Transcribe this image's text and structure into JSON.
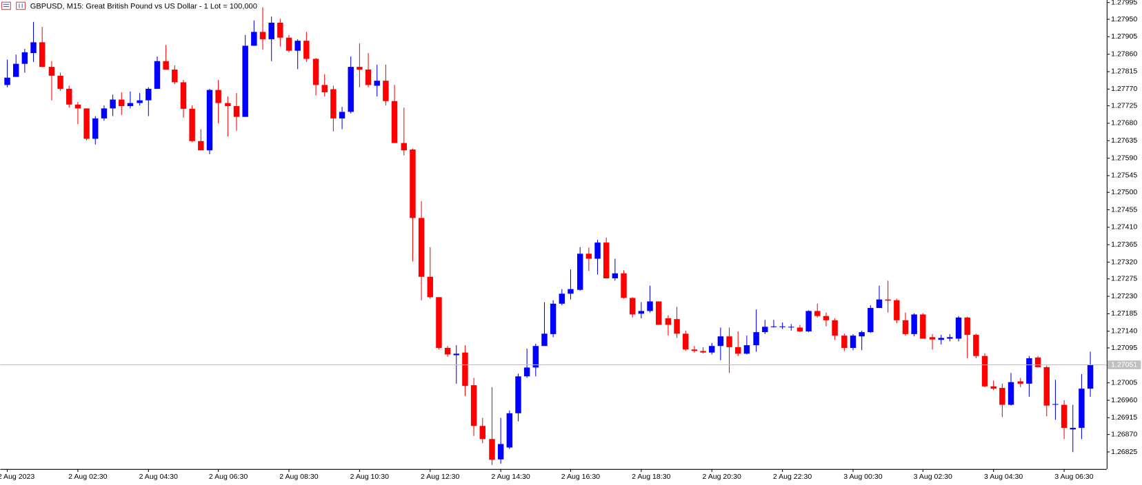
{
  "chart_data": {
    "type": "candlestick",
    "title": "GBPUSD, M15:  Great British Pound vs US Dollar - 1 Lot = 100,000",
    "up_color": "#0000ff",
    "down_color": "#ff0000",
    "categories": [
      "2 Aug 2023",
      null,
      null,
      null,
      null,
      null,
      null,
      null,
      "2 Aug 02:30",
      null,
      null,
      null,
      null,
      null,
      null,
      null,
      "2 Aug 04:30",
      null,
      null,
      null,
      null,
      null,
      null,
      null,
      "2 Aug 06:30",
      null,
      null,
      null,
      null,
      null,
      null,
      null,
      "2 Aug 08:30",
      null,
      null,
      null,
      null,
      null,
      null,
      null,
      "2 Aug 10:30",
      null,
      null,
      null,
      null,
      null,
      null,
      null,
      "2 Aug 12:30",
      null,
      null,
      null,
      null,
      null,
      null,
      null,
      "2 Aug 14:30",
      null,
      null,
      null,
      null,
      null,
      null,
      null,
      "2 Aug 16:30",
      null,
      null,
      null,
      null,
      null,
      null,
      null,
      "2 Aug 18:30",
      null,
      null,
      null,
      null,
      null,
      null,
      null,
      "2 Aug 20:30",
      null,
      null,
      null,
      null,
      null,
      null,
      null,
      "2 Aug 22:30",
      null,
      null,
      null,
      null,
      null,
      null,
      null,
      "3 Aug 00:30",
      null,
      null,
      null,
      null,
      null,
      null,
      null,
      "3 Aug 02:30",
      null,
      null,
      null,
      null,
      null,
      null,
      null,
      "3 Aug 04:30",
      null,
      null,
      null,
      null,
      null,
      null,
      null,
      "3 Aug 06:30",
      null,
      null,
      null
    ],
    "open": [
      1.27779,
      1.278,
      1.27834,
      1.27862,
      1.2789,
      1.27826,
      1.27803,
      1.27769,
      1.27728,
      1.27718,
      1.27639,
      1.27692,
      1.27718,
      1.27741,
      1.27724,
      1.27732,
      1.27739,
      1.27769,
      1.27841,
      1.27819,
      1.27786,
      1.27717,
      1.27633,
      1.27609,
      1.27766,
      1.27732,
      1.27724,
      1.27696,
      1.27881,
      1.27917,
      1.27898,
      1.27941,
      1.27902,
      1.27868,
      1.27894,
      1.27847,
      1.27779,
      1.27768,
      1.27692,
      1.27709,
      1.27826,
      1.27819,
      1.27777,
      1.2779,
      1.27737,
      1.27628,
      1.27611,
      1.27433,
      1.2728,
      1.27227,
      1.27095,
      1.27076,
      1.27083,
      1.26998,
      1.26892,
      1.26858,
      1.26805,
      1.26836,
      1.26925,
      1.27021,
      1.27044,
      1.271,
      1.27131,
      1.2721,
      1.27236,
      1.27246,
      1.2734,
      1.27327,
      1.27369,
      1.27276,
      1.27289,
      1.27225,
      1.27184,
      1.27191,
      1.27216,
      1.27172,
      1.2717,
      1.27132,
      1.27091,
      1.27087,
      1.27083,
      1.271,
      1.27125,
      1.27097,
      1.2708,
      1.27102,
      1.27136,
      1.2715,
      1.2715,
      1.2715,
      1.27148,
      1.27138,
      1.27191,
      1.27178,
      1.27167,
      1.27127,
      1.27095,
      1.27125,
      1.27136,
      1.27199,
      1.27221,
      1.27219,
      1.27167,
      1.27131,
      1.27182,
      1.27123,
      1.27116,
      1.27119,
      1.27119,
      1.27174,
      1.27129,
      1.27074,
      1.26995,
      1.26991,
      1.26947,
      1.27008,
      1.27002,
      1.2707,
      1.27045,
      1.26949,
      1.26947,
      1.26883,
      1.26887,
      1.26989
    ],
    "high": [
      1.27845,
      1.27858,
      1.27873,
      1.27943,
      1.2793,
      1.27841,
      1.27811,
      1.27777,
      1.27735,
      1.27718,
      1.27698,
      1.27726,
      1.27754,
      1.2776,
      1.27762,
      1.27758,
      1.27773,
      1.27853,
      1.27883,
      1.2783,
      1.27792,
      1.27726,
      1.27664,
      1.27769,
      1.27792,
      1.27749,
      1.27758,
      1.27909,
      1.27947,
      1.27981,
      1.27957,
      1.27951,
      1.27909,
      1.27898,
      1.27917,
      1.27849,
      1.27807,
      1.27777,
      1.27722,
      1.27853,
      1.27887,
      1.27862,
      1.27832,
      1.27832,
      1.27779,
      1.2772,
      1.27614,
      1.27477,
      1.27357,
      1.27227,
      1.271,
      1.27102,
      1.27102,
      1.27017,
      1.26913,
      1.26993,
      1.26913,
      1.26932,
      1.27028,
      1.27093,
      1.27106,
      1.27214,
      1.27219,
      1.27248,
      1.27299,
      1.27357,
      1.27356,
      1.27376,
      1.27382,
      1.27327,
      1.27297,
      1.27227,
      1.27214,
      1.27257,
      1.27216,
      1.2718,
      1.27202,
      1.2714,
      1.271,
      1.27097,
      1.27108,
      1.27148,
      1.27148,
      1.27138,
      1.27127,
      1.27195,
      1.27168,
      1.27168,
      1.27161,
      1.27157,
      1.27155,
      1.27193,
      1.2721,
      1.27187,
      1.27172,
      1.27132,
      1.27131,
      1.2714,
      1.27206,
      1.27257,
      1.2727,
      1.27223,
      1.27187,
      1.27185,
      1.27185,
      1.27131,
      1.27129,
      1.27131,
      1.27178,
      1.27176,
      1.27132,
      1.27081,
      1.2701,
      1.27002,
      1.2703,
      1.27017,
      1.27074,
      1.27074,
      1.27049,
      1.27012,
      1.26959,
      1.26947,
      1.27027,
      1.27085
    ],
    "low": [
      1.27773,
      1.278,
      1.27811,
      1.27839,
      1.27826,
      1.27739,
      1.27764,
      1.2772,
      1.27677,
      1.27635,
      1.27624,
      1.27686,
      1.27698,
      1.27701,
      1.27718,
      1.27726,
      1.27698,
      1.27769,
      1.27819,
      1.27781,
      1.27694,
      1.2763,
      1.27609,
      1.27599,
      1.27679,
      1.27645,
      1.2766,
      1.27696,
      1.27881,
      1.27871,
      1.27841,
      1.27879,
      1.27864,
      1.2782,
      1.27839,
      1.27752,
      1.27749,
      1.27658,
      1.27664,
      1.27705,
      1.27773,
      1.27773,
      1.27749,
      1.27726,
      1.27628,
      1.27596,
      1.2732,
      1.27219,
      1.27223,
      1.27091,
      1.27072,
      1.27002,
      1.2697,
      1.26866,
      1.26847,
      1.2679,
      1.26794,
      1.26832,
      1.26904,
      1.27017,
      1.27021,
      1.271,
      1.27123,
      1.27206,
      1.27221,
      1.27244,
      1.27295,
      1.27286,
      1.27276,
      1.2727,
      1.27223,
      1.27174,
      1.27172,
      1.27187,
      1.27155,
      1.27127,
      1.27121,
      1.27087,
      1.27083,
      1.27081,
      1.27078,
      1.27063,
      1.2703,
      1.27074,
      1.27078,
      1.27085,
      1.27131,
      1.27148,
      1.27144,
      1.2714,
      1.27136,
      1.27136,
      1.27174,
      1.27151,
      1.27116,
      1.27087,
      1.27089,
      1.27089,
      1.27134,
      1.27199,
      1.27187,
      1.27159,
      1.27127,
      1.27125,
      1.27119,
      1.27091,
      1.27104,
      1.27112,
      1.27112,
      1.27068,
      1.27068,
      1.26993,
      1.26985,
      1.26915,
      1.26945,
      1.26993,
      1.26968,
      1.27045,
      1.26917,
      1.26908,
      1.26858,
      1.26824,
      1.26858,
      1.26968
    ],
    "close": [
      1.27798,
      1.27834,
      1.27864,
      1.2789,
      1.27826,
      1.27803,
      1.27769,
      1.27728,
      1.27718,
      1.27639,
      1.27692,
      1.27718,
      1.27741,
      1.27724,
      1.27732,
      1.27739,
      1.27769,
      1.27841,
      1.27819,
      1.27786,
      1.27717,
      1.27633,
      1.27609,
      1.27766,
      1.27732,
      1.27724,
      1.27696,
      1.27881,
      1.27917,
      1.27898,
      1.27941,
      1.27902,
      1.27868,
      1.27894,
      1.27847,
      1.27779,
      1.2776,
      1.27692,
      1.27709,
      1.27826,
      1.27819,
      1.27779,
      1.2779,
      1.27737,
      1.27628,
      1.27609,
      1.27433,
      1.2728,
      1.27227,
      1.27095,
      1.27078,
      1.2708,
      1.26996,
      1.26892,
      1.26858,
      1.26804,
      1.26845,
      1.26925,
      1.27021,
      1.27044,
      1.271,
      1.27132,
      1.2721,
      1.27236,
      1.27248,
      1.2734,
      1.27327,
      1.27369,
      1.27276,
      1.27289,
      1.27225,
      1.27182,
      1.27191,
      1.27216,
      1.27155,
      1.27155,
      1.27132,
      1.27091,
      1.27087,
      1.27083,
      1.271,
      1.27125,
      1.27097,
      1.2708,
      1.27102,
      1.27136,
      1.2715,
      1.27151,
      1.27151,
      1.2715,
      1.27138,
      1.27191,
      1.27178,
      1.27167,
      1.27127,
      1.27095,
      1.27127,
      1.27136,
      1.27199,
      1.27221,
      1.27218,
      1.27167,
      1.27131,
      1.27182,
      1.27119,
      1.27117,
      1.27121,
      1.27123,
      1.27174,
      1.27129,
      1.27074,
      1.26995,
      1.26989,
      1.26947,
      1.27006,
      1.27002,
      1.27068,
      1.27045,
      1.26945,
      1.26949,
      1.26887,
      1.26887,
      1.26989,
      1.27051
    ],
    "ylim": [
      1.2678,
      1.28
    ],
    "yticks": [
      1.26825,
      {
        "value": 1.2687,
        "label": "1.26870"
      },
      1.26915,
      {
        "value": 1.2696,
        "label": "1.26960"
      },
      1.27005,
      {
        "value": 1.2705,
        "label": "1.27050"
      },
      1.27095,
      {
        "value": 1.2714,
        "label": "1.27140"
      },
      1.27185,
      {
        "value": 1.2723,
        "label": "1.27230"
      },
      1.27275,
      {
        "value": 1.2732,
        "label": "1.27320"
      },
      1.27365,
      {
        "value": 1.2741,
        "label": "1.27410"
      },
      1.27455,
      {
        "value": 1.275,
        "label": "1.27500"
      },
      1.27545,
      {
        "value": 1.2759,
        "label": "1.27590"
      },
      1.27635,
      {
        "value": 1.2768,
        "label": "1.27680"
      },
      1.27725,
      {
        "value": 1.2777,
        "label": "1.27770"
      },
      1.27815,
      {
        "value": 1.2786,
        "label": "1.27860"
      },
      1.27905,
      {
        "value": 1.2795,
        "label": "1.27950"
      },
      1.27995
    ],
    "grid": false
  }
}
